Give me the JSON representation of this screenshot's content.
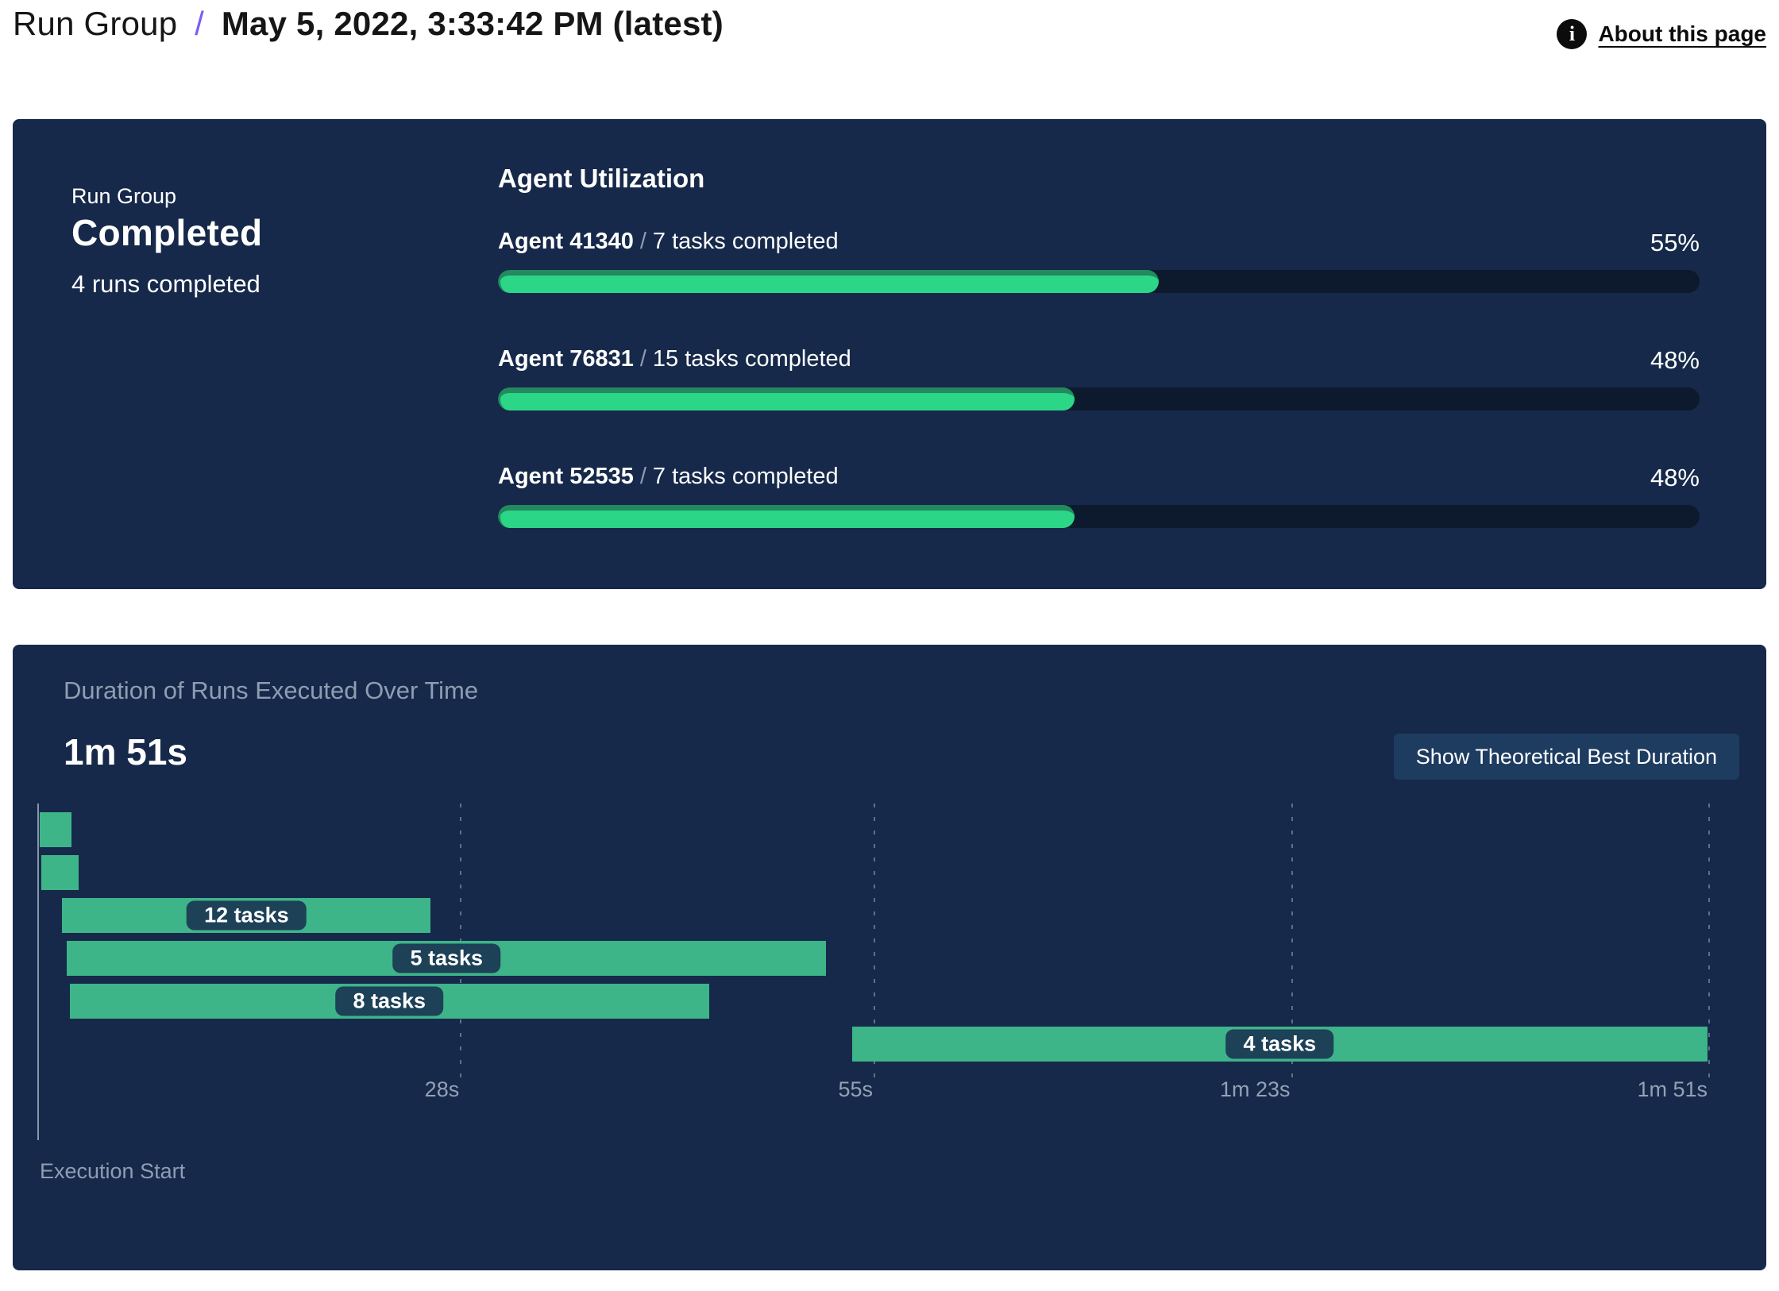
{
  "header": {
    "title_light": "Run Group",
    "separator": "/",
    "title_bold": "May 5, 2022, 3:33:42 PM (latest)",
    "about_link": "About this page",
    "info_icon_glyph": "i"
  },
  "summary_card": {
    "label": "Run Group",
    "status": "Completed",
    "runs_completed": "4 runs completed",
    "utilization_title": "Agent Utilization",
    "agents": [
      {
        "name": "Agent 41340",
        "separator": "/",
        "tasks": "7 tasks completed",
        "percent": "55%",
        "percent_value": 55
      },
      {
        "name": "Agent 76831",
        "separator": "/",
        "tasks": "15 tasks completed",
        "percent": "48%",
        "percent_value": 48
      },
      {
        "name": "Agent 52535",
        "separator": "/",
        "tasks": "7 tasks completed",
        "percent": "48%",
        "percent_value": 48
      }
    ]
  },
  "duration_card": {
    "title": "Duration of Runs Executed Over Time",
    "total_duration": "1m 51s",
    "button_label": "Show Theoretical Best Duration",
    "execution_start_label": "Execution Start"
  },
  "chart_data": {
    "type": "gantt",
    "title": "Duration of Runs Executed Over Time",
    "total_duration_label": "1m 51s",
    "total_seconds": 111,
    "xlabel": "Execution Start",
    "grid": "dashed-vertical",
    "x_ticks": [
      {
        "label": "28s",
        "seconds": 28
      },
      {
        "label": "55s",
        "seconds": 55.5
      },
      {
        "label": "1m 23s",
        "seconds": 83.25
      },
      {
        "label": "1m 51s",
        "seconds": 111
      }
    ],
    "bars": [
      {
        "row": 0,
        "start_s": 0,
        "end_s": 2.1,
        "tasks_label": null
      },
      {
        "row": 1,
        "start_s": 0.1,
        "end_s": 2.6,
        "tasks_label": null
      },
      {
        "row": 2,
        "start_s": 1.5,
        "end_s": 26,
        "tasks_label": "12 tasks"
      },
      {
        "row": 3,
        "start_s": 1.8,
        "end_s": 52.3,
        "tasks_label": "5 tasks"
      },
      {
        "row": 4,
        "start_s": 2,
        "end_s": 44.5,
        "tasks_label": "8 tasks"
      },
      {
        "row": 5,
        "start_s": 54,
        "end_s": 110.9,
        "tasks_label": "4 tasks"
      }
    ]
  },
  "colors": {
    "card-bg": "#16294a",
    "track": "#0d1a2d",
    "fill-green": "#2bd687",
    "fill-green-dark": "#23895f",
    "gantt-green": "#3eb489",
    "badge-bg": "#1d4157",
    "accent-purple": "#7b5cf5",
    "button-bg": "#1d3c60",
    "muted": "#8e9db2",
    "tick": "#93a1b4",
    "grid": "#9aa9bd"
  }
}
